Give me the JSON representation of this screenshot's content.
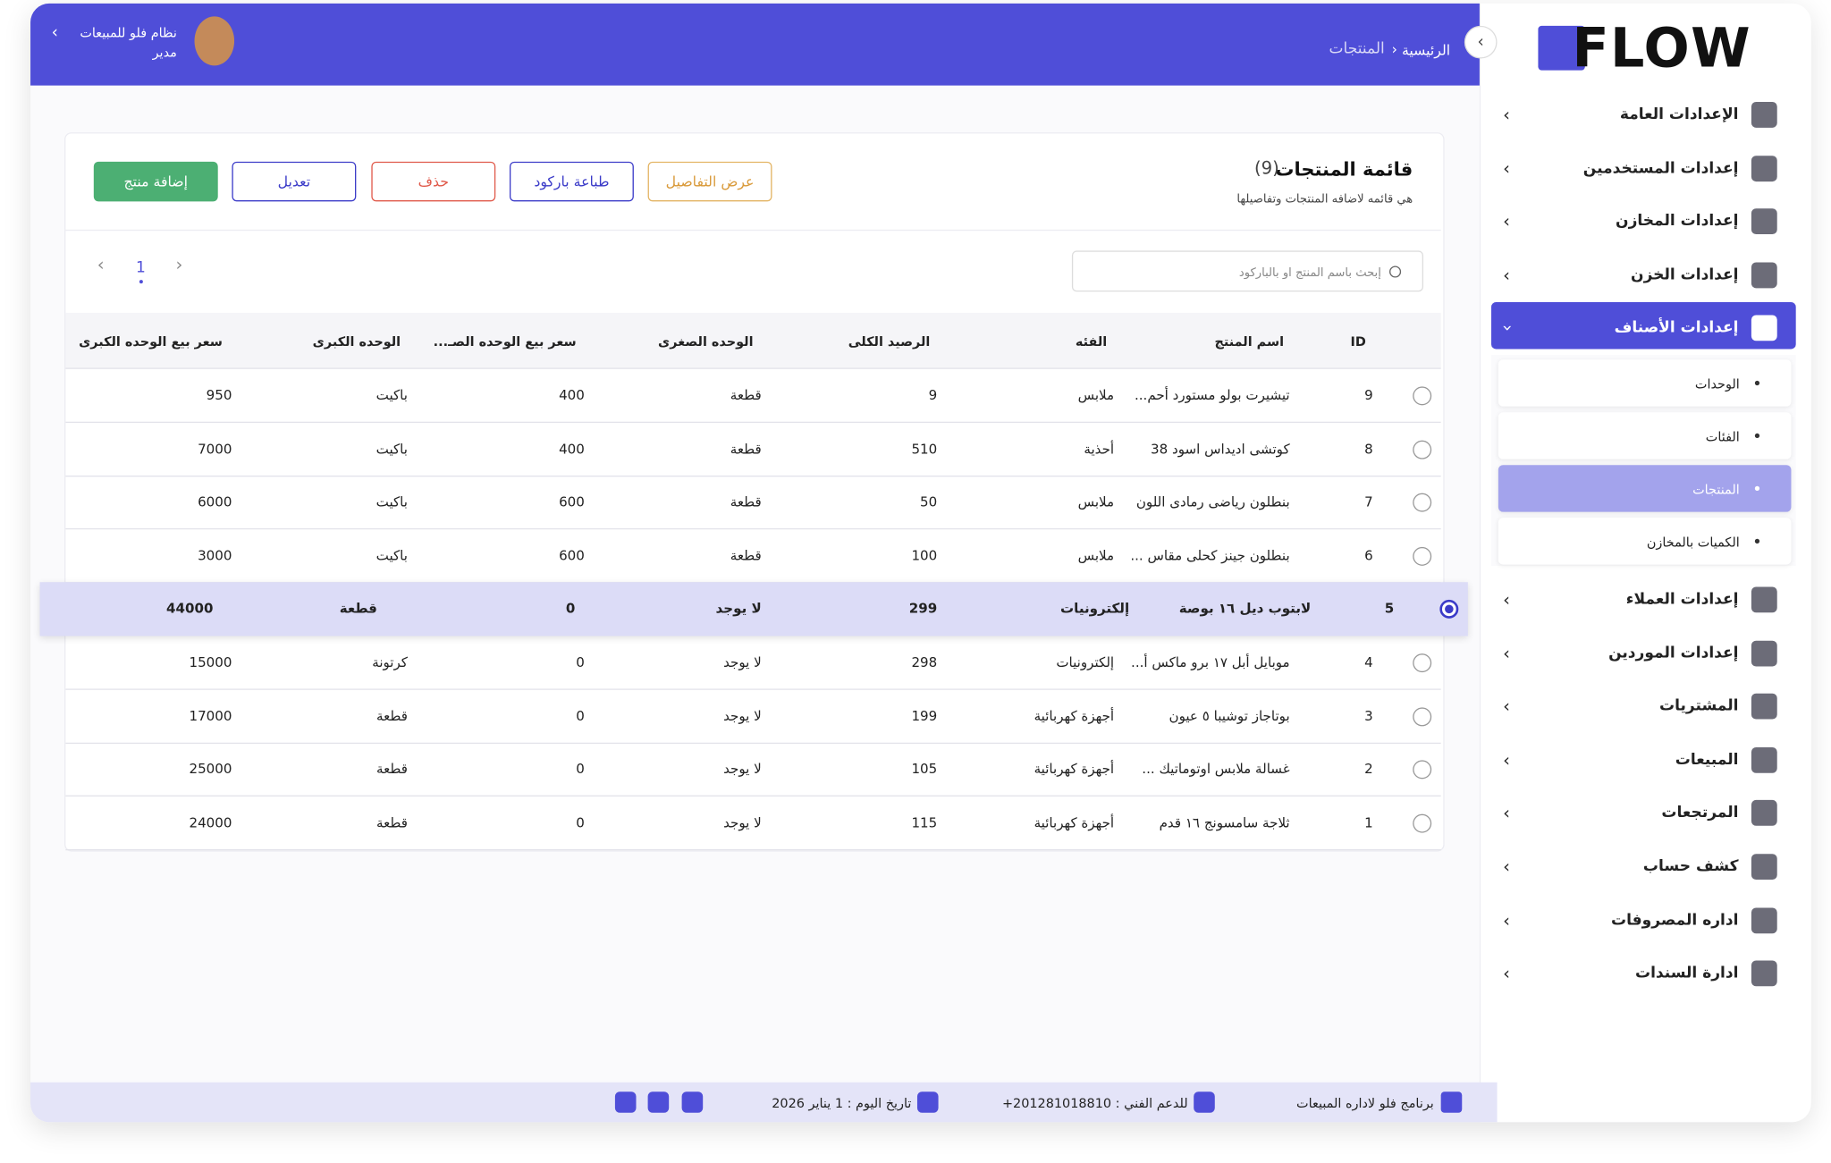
{
  "sidebar": {
    "logo": "FLOW",
    "items": [
      {
        "label": "الإعدادات العامة"
      },
      {
        "label": "إعدادات المستخدمين"
      },
      {
        "label": "إعدادات المخازن"
      },
      {
        "label": "إعدادات الخزن"
      },
      {
        "label": "إعدادات الأصناف",
        "active": true,
        "children": [
          {
            "label": "الوحدات"
          },
          {
            "label": "الفئات"
          },
          {
            "label": "المنتجات",
            "active": true
          },
          {
            "label": "الكميات بالمخازن"
          }
        ]
      },
      {
        "label": "إعدادات العملاء"
      },
      {
        "label": "إعدادات الموردين"
      },
      {
        "label": "المشتريات"
      },
      {
        "label": "المبيعات"
      },
      {
        "label": "المرتجعات"
      },
      {
        "label": "كشف حساب"
      },
      {
        "label": "اداره المصروفات"
      },
      {
        "label": "ادارة السندات"
      }
    ]
  },
  "header": {
    "breadcrumb": [
      "الرئيسية",
      "المنتجات"
    ],
    "app_name": "نظام فلو للمبيعات",
    "role": "مدير"
  },
  "page": {
    "title": "قائمة المنتجات",
    "count": "(9)",
    "subtitle": "هي قائمه لاضافه المنتجات وتفاصيلها",
    "buttons": [
      {
        "label": "إضافة منتج",
        "style": "primary"
      },
      {
        "label": "تعديل",
        "style": "blue"
      },
      {
        "label": "حذف",
        "style": "red"
      },
      {
        "label": "طباعة باركود",
        "style": "blue"
      },
      {
        "label": "عرض التفاصيل",
        "style": "orange"
      }
    ],
    "search_placeholder": "إبحث باسم المنتج او بالباركود",
    "pagination": {
      "current": "1"
    }
  },
  "table": {
    "columns": [
      "ID",
      "اسم المنتج",
      "الفئه",
      "الرصيد الكلى",
      "الوحده الصغرى",
      "سعر بيع الوحده الصـ...",
      "الوحده الكبرى",
      "سعر بيع الوحده الكبرى"
    ],
    "selected_row": 4,
    "rows": [
      [
        9,
        "تيشيرت بولو مستورد أحم...",
        "ملابس",
        9,
        "قطعة",
        400,
        "باكيت",
        950
      ],
      [
        8,
        "كوتشى اديداس اسود 38",
        "أحذية",
        510,
        "قطعة",
        400,
        "باكيت",
        7000
      ],
      [
        7,
        "بنطلون رياضى رمادى اللون",
        "ملابس",
        50,
        "قطعة",
        600,
        "باكيت",
        6000
      ],
      [
        6,
        "بنطلون جينز كحلى مقاس ...",
        "ملابس",
        100,
        "قطعة",
        600,
        "باكيت",
        3000
      ],
      [
        5,
        "لابتوب ديل ١٦ بوصة",
        "إلكترونيات",
        299,
        "لا يوجد",
        0,
        "قطعة",
        44000
      ],
      [
        4,
        "موبايل أبل ١٧ برو ماكس أ...",
        "إلكترونيات",
        298,
        "لا يوجد",
        0,
        "كرتونة",
        15000
      ],
      [
        3,
        "بوتاجاز توشيبا ٥ عيون",
        "أجهزة كهربائية",
        199,
        "لا يوجد",
        0,
        "قطعة",
        17000
      ],
      [
        2,
        "غسالة ملابس اوتوماتيك ...",
        "أجهزة كهربائية",
        105,
        "لا يوجد",
        0,
        "قطعة",
        25000
      ],
      [
        1,
        "ثلاجة سامسونج ١٦ قدم",
        "أجهزة كهربائية",
        115,
        "لا يوجد",
        0,
        "قطعة",
        24000
      ]
    ]
  },
  "footer": {
    "program": "برنامج فلو لاداره المبيعات",
    "support": "للدعم الفني : 201281018810+",
    "date": "تاريخ اليوم : 1 يناير 2026"
  }
}
